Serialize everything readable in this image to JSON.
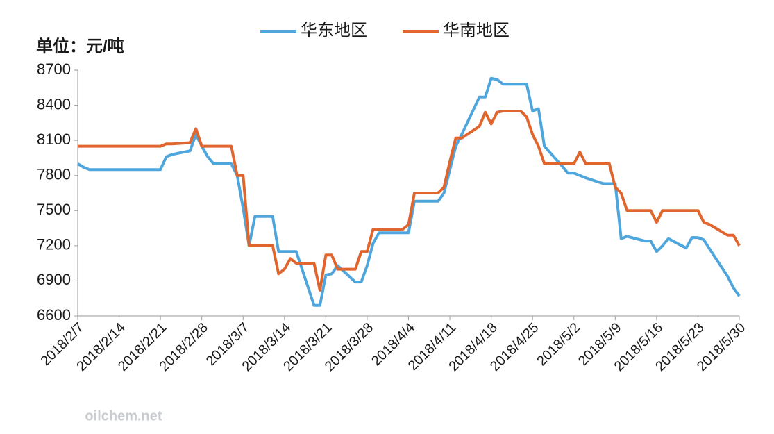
{
  "chart_data": {
    "type": "line",
    "unit_label": "单位：元/吨",
    "watermark": "oilchem.net",
    "x": [
      "2018/2/7",
      "2018/2/8",
      "2018/2/9",
      "2018/2/12",
      "2018/2/13",
      "2018/2/14",
      "2018/2/15",
      "2018/2/16",
      "2018/2/19",
      "2018/2/20",
      "2018/2/21",
      "2018/2/22",
      "2018/2/23",
      "2018/2/26",
      "2018/2/27",
      "2018/2/28",
      "2018/3/1",
      "2018/3/2",
      "2018/3/5",
      "2018/3/6",
      "2018/3/7",
      "2018/3/8",
      "2018/3/9",
      "2018/3/12",
      "2018/3/13",
      "2018/3/14",
      "2018/3/15",
      "2018/3/16",
      "2018/3/19",
      "2018/3/20",
      "2018/3/21",
      "2018/3/22",
      "2018/3/23",
      "2018/3/26",
      "2018/3/27",
      "2018/3/28",
      "2018/3/29",
      "2018/3/30",
      "2018/4/2",
      "2018/4/3",
      "2018/4/4",
      "2018/4/5",
      "2018/4/6",
      "2018/4/9",
      "2018/4/10",
      "2018/4/11",
      "2018/4/12",
      "2018/4/13",
      "2018/4/16",
      "2018/4/17",
      "2018/4/18",
      "2018/4/19",
      "2018/4/20",
      "2018/4/23",
      "2018/4/24",
      "2018/4/25",
      "2018/4/26",
      "2018/4/27",
      "2018/4/30",
      "2018/5/1",
      "2018/5/2",
      "2018/5/3",
      "2018/5/4",
      "2018/5/7",
      "2018/5/8",
      "2018/5/9",
      "2018/5/10",
      "2018/5/11",
      "2018/5/14",
      "2018/5/15",
      "2018/5/16",
      "2018/5/17",
      "2018/5/18",
      "2018/5/21",
      "2018/5/22",
      "2018/5/23",
      "2018/5/24",
      "2018/5/25",
      "2018/5/28",
      "2018/5/29",
      "2018/5/30"
    ],
    "series": [
      {
        "name": "华东地区",
        "color": "#4ea6dc",
        "values": [
          7900,
          7870,
          7850,
          7850,
          7850,
          7850,
          7850,
          7850,
          7850,
          7850,
          7850,
          7960,
          7980,
          8010,
          8150,
          8050,
          7960,
          7900,
          7900,
          7800,
          7520,
          7200,
          7450,
          7450,
          7150,
          7150,
          7150,
          7150,
          6690,
          6690,
          6950,
          6960,
          7030,
          6890,
          6890,
          7030,
          7220,
          7310,
          7310,
          7310,
          7310,
          7580,
          7580,
          7580,
          7650,
          7850,
          8050,
          8150,
          8470,
          8470,
          8630,
          8620,
          8580,
          8580,
          8580,
          8350,
          8370,
          8050,
          7880,
          7820,
          7820,
          7800,
          7780,
          7730,
          7730,
          7730,
          7260,
          7280,
          7240,
          7240,
          7150,
          7200,
          7260,
          7180,
          7270,
          7270,
          7250,
          7170,
          6940,
          6840,
          6770
        ]
      },
      {
        "name": "华南地区",
        "color": "#e0662e",
        "values": [
          8050,
          8050,
          8050,
          8050,
          8050,
          8050,
          8050,
          8050,
          8050,
          8050,
          8050,
          8070,
          8070,
          8080,
          8200,
          8050,
          8050,
          8050,
          8050,
          7800,
          7800,
          7200,
          7200,
          7200,
          6960,
          7000,
          7090,
          7050,
          7050,
          6820,
          7120,
          7120,
          7000,
          7000,
          7150,
          7150,
          7340,
          7340,
          7340,
          7340,
          7380,
          7650,
          7650,
          7650,
          7700,
          7920,
          8120,
          8120,
          8220,
          8340,
          8240,
          8340,
          8350,
          8350,
          8300,
          8150,
          8050,
          7900,
          7900,
          7900,
          7900,
          8000,
          7900,
          7900,
          7900,
          7700,
          7650,
          7500,
          7500,
          7500,
          7400,
          7500,
          7500,
          7500,
          7500,
          7500,
          7400,
          7380,
          7290,
          7290,
          7200
        ]
      }
    ],
    "xlim": [
      "2018/2/7",
      "2018/5/30"
    ],
    "xticks": [
      "2018/2/7",
      "2018/2/14",
      "2018/2/21",
      "2018/2/28",
      "2018/3/7",
      "2018/3/14",
      "2018/3/21",
      "2018/3/28",
      "2018/4/4",
      "2018/4/11",
      "2018/4/18",
      "2018/4/25",
      "2018/5/2",
      "2018/5/9",
      "2018/5/16",
      "2018/5/23",
      "2018/5/30"
    ],
    "ylim": [
      6600,
      8700
    ],
    "yticks": [
      6600,
      6900,
      7200,
      7500,
      7800,
      8100,
      8400,
      8700
    ],
    "legend": "top"
  }
}
